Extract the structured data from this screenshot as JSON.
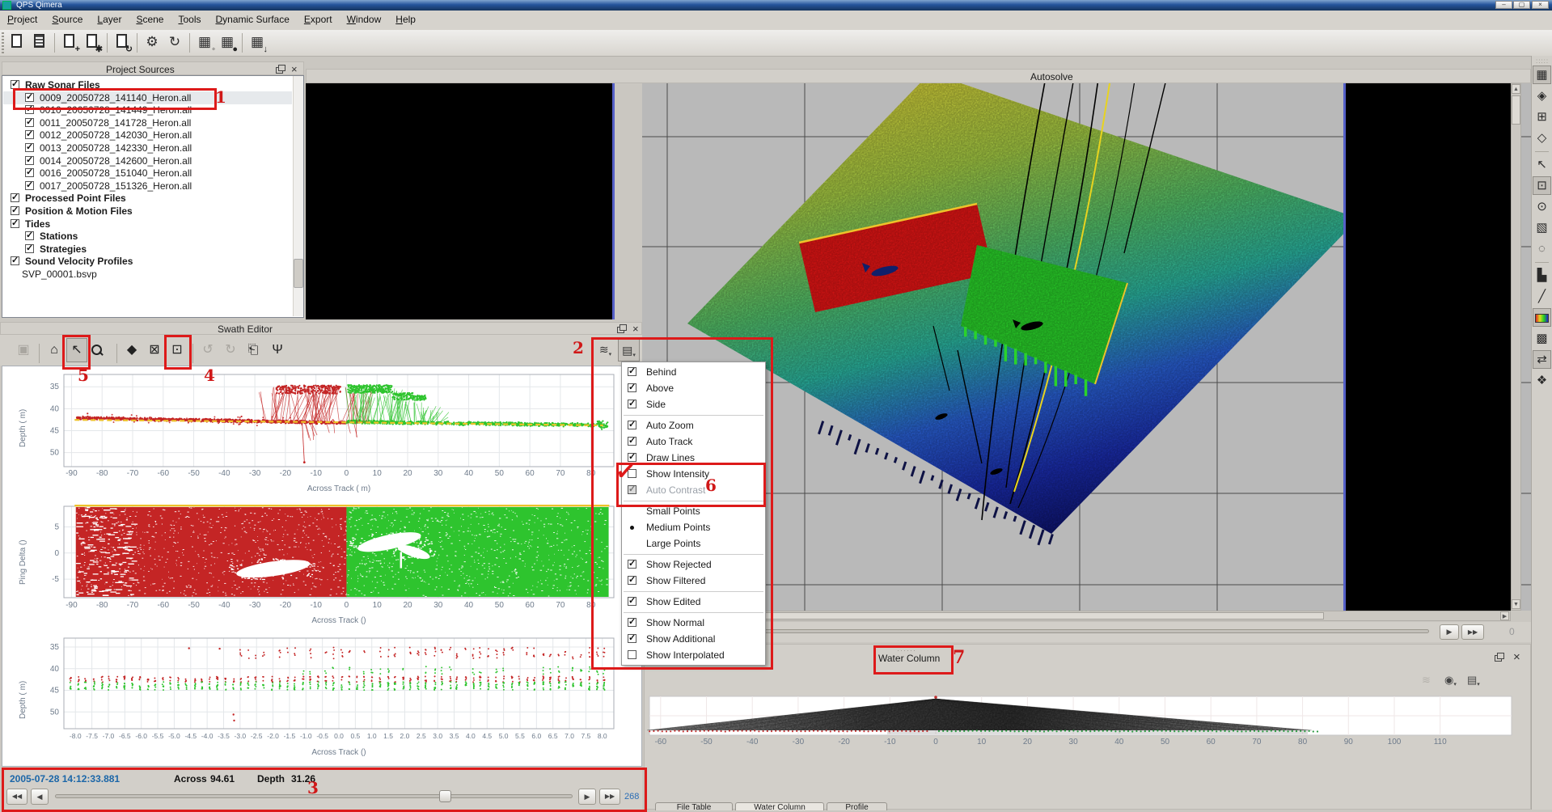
{
  "window": {
    "title": "QPS Qimera",
    "buttons": [
      {
        "name": "minimize-button",
        "glyph": "–"
      },
      {
        "name": "maximize-button",
        "glyph": "▢"
      },
      {
        "name": "close-button",
        "glyph": "×"
      }
    ]
  },
  "menu_bar": {
    "items": [
      "Project",
      "Source",
      "Layer",
      "Scene",
      "Tools",
      "Dynamic Surface",
      "Export",
      "Window",
      "Help"
    ]
  },
  "main_toolbar": {
    "icons": [
      {
        "name": "new-project-icon",
        "style": "doc"
      },
      {
        "name": "open-project-icon",
        "style": "doc-fill"
      },
      {
        "name": "add-raw-sonar-files-icon",
        "style": "doc",
        "badge": "+"
      },
      {
        "name": "add-processed-files-icon",
        "style": "doc",
        "badge": "✱"
      },
      {
        "name": "add-position-files-icon",
        "style": "doc",
        "badge": "↻"
      },
      {
        "name": "processing-settings-icon",
        "style": "glyph",
        "glyph": "⚙"
      },
      {
        "name": "reprocess-icon",
        "style": "glyph",
        "glyph": "↻"
      },
      {
        "name": "dynamic-surface-icon",
        "style": "glyph",
        "glyph": "▦",
        "badge": "◦"
      },
      {
        "name": "lock-surface-icon",
        "style": "glyph",
        "glyph": "▦",
        "badge": "●"
      },
      {
        "name": "export-surface-icon",
        "style": "glyph",
        "glyph": "▦",
        "badge": "↓"
      }
    ]
  },
  "project_sources": {
    "title": "Project Sources",
    "tree": [
      {
        "label": "Raw Sonar Files",
        "depth": 0,
        "checked": true,
        "bold": true
      },
      {
        "label": "0009_20050728_141140_Heron.all",
        "depth": 1,
        "checked": true,
        "selected": true
      },
      {
        "label": "0010_20050728_141449_Heron.all",
        "depth": 1,
        "checked": true
      },
      {
        "label": "0011_20050728_141728_Heron.all",
        "depth": 1,
        "checked": true
      },
      {
        "label": "0012_20050728_142030_Heron.all",
        "depth": 1,
        "checked": true
      },
      {
        "label": "0013_20050728_142330_Heron.all",
        "depth": 1,
        "checked": true
      },
      {
        "label": "0014_20050728_142600_Heron.all",
        "depth": 1,
        "checked": true
      },
      {
        "label": "0016_20050728_151040_Heron.all",
        "depth": 1,
        "checked": true
      },
      {
        "label": "0017_20050728_151326_Heron.all",
        "depth": 1,
        "checked": true
      },
      {
        "label": "Processed Point Files",
        "depth": 0,
        "checked": true,
        "bold": true
      },
      {
        "label": "Position & Motion Files",
        "depth": 0,
        "checked": true,
        "bold": true
      },
      {
        "label": "Tides",
        "depth": 0,
        "checked": true,
        "bold": true
      },
      {
        "label": "Stations",
        "depth": 1,
        "checked": true,
        "bold": true
      },
      {
        "label": "Strategies",
        "depth": 1,
        "checked": true,
        "bold": true
      },
      {
        "label": "Sound Velocity Profiles",
        "depth": 0,
        "checked": true,
        "bold": true
      },
      {
        "label": "SVP_00001.bsvp",
        "depth": 1,
        "checked": null
      }
    ]
  },
  "swath_editor": {
    "title": "Swath Editor",
    "toolbar": [
      {
        "name": "save-icon",
        "glyph": "▣",
        "disabled": true
      },
      {
        "name": "separator"
      },
      {
        "name": "home-view-icon",
        "glyph": "⌂"
      },
      {
        "name": "pick-cursor-icon",
        "glyph": "↖",
        "pressed": true
      },
      {
        "name": "zoom-icon",
        "glyph": "zoomico",
        "boxed": true
      },
      {
        "name": "separator"
      },
      {
        "name": "erase-icon",
        "glyph": "◆"
      },
      {
        "name": "reject-selection-icon",
        "glyph": "⊠"
      },
      {
        "name": "accept-selection-icon",
        "glyph": "⊡"
      },
      {
        "name": "separator"
      },
      {
        "name": "undo-icon",
        "glyph": "↺",
        "disabled": true
      },
      {
        "name": "redo-icon",
        "glyph": "↻",
        "disabled": true
      },
      {
        "name": "insert-view-icon",
        "glyph": "⎗",
        "boxed": true
      },
      {
        "name": "beam-filter-icon",
        "glyph": "Ψ"
      }
    ],
    "view_buttons": [
      {
        "name": "swath-display-icon",
        "glyph": "≋"
      },
      {
        "name": "display-options-menu-button",
        "glyph": "▤",
        "pressed": true
      }
    ],
    "status": {
      "timestamp": "2005-07-28 14:12:33.881",
      "across_label": "Across",
      "across_value": "94.61",
      "depth_label": "Depth",
      "depth_value": "31.26",
      "ping_count": "268"
    }
  },
  "view_menu": {
    "items": [
      {
        "label": "Behind",
        "type": "check",
        "checked": true
      },
      {
        "label": "Above",
        "type": "check",
        "checked": true
      },
      {
        "label": "Side",
        "type": "check",
        "checked": true
      },
      {
        "type": "separator"
      },
      {
        "label": "Auto Zoom",
        "type": "check",
        "checked": true
      },
      {
        "label": "Auto Track",
        "type": "check",
        "checked": true
      },
      {
        "label": "Draw Lines",
        "type": "check",
        "checked": true
      },
      {
        "label": "Show Intensity",
        "type": "check",
        "checked": false
      },
      {
        "label": "Auto Contrast",
        "type": "check",
        "checked": true,
        "disabled": true
      },
      {
        "type": "separator"
      },
      {
        "label": "Small Points",
        "type": "radio",
        "checked": false
      },
      {
        "label": "Medium Points",
        "type": "radio",
        "checked": true
      },
      {
        "label": "Large Points",
        "type": "radio",
        "checked": false
      },
      {
        "type": "separator"
      },
      {
        "label": "Show Rejected",
        "type": "check",
        "checked": true
      },
      {
        "label": "Show Filtered",
        "type": "check",
        "checked": true
      },
      {
        "type": "separator"
      },
      {
        "label": "Show Edited",
        "type": "check",
        "checked": true
      },
      {
        "type": "separator"
      },
      {
        "label": "Show Normal",
        "type": "check",
        "checked": true
      },
      {
        "label": "Show Additional",
        "type": "check",
        "checked": true
      },
      {
        "label": "Show Interpolated",
        "type": "check",
        "checked": false
      }
    ]
  },
  "autosolve": {
    "title": "Autosolve",
    "nav_counter": "0"
  },
  "water_column": {
    "title": "Water Column",
    "toolbar": [
      {
        "name": "fan-mode-icon",
        "glyph": "≋",
        "disabled": true
      },
      {
        "name": "visibility-icon",
        "glyph": "◉",
        "dropdown": true
      },
      {
        "name": "options-menu-icon",
        "glyph": "▤",
        "dropdown": true
      }
    ]
  },
  "bottom_tabs": [
    {
      "label": "File Table",
      "active": false
    },
    {
      "label": "Water Column",
      "active": true
    },
    {
      "label": "Profile",
      "active": false
    }
  ],
  "right_toolbar": {
    "icons": [
      {
        "name": "view-2d-icon",
        "glyph": "▦",
        "pressed": true
      },
      {
        "name": "view-plan-icon",
        "glyph": "◈"
      },
      {
        "name": "zoom-extents-icon",
        "glyph": "⊞"
      },
      {
        "name": "view-3d-cube-icon",
        "glyph": "◇"
      },
      {
        "name": "separator"
      },
      {
        "name": "select-cursor-icon",
        "glyph": "↖"
      },
      {
        "name": "box-select-icon",
        "glyph": "⊡",
        "pressed": true
      },
      {
        "name": "point-select-icon",
        "glyph": "⊙"
      },
      {
        "name": "rect-lasso-icon",
        "glyph": "▧"
      },
      {
        "name": "lasso-icon",
        "glyph": "◌"
      },
      {
        "name": "separator"
      },
      {
        "name": "histogram-icon",
        "glyph": "▙"
      },
      {
        "name": "ruler-icon",
        "glyph": "╱"
      },
      {
        "name": "colormap-icon",
        "glyph": "cbar",
        "pressed": true
      },
      {
        "name": "surface-grid-icon",
        "glyph": "▩"
      },
      {
        "name": "swap-view-icon",
        "glyph": "⇄",
        "pressed": true
      },
      {
        "name": "vertex-edit-icon",
        "glyph": "❖"
      }
    ]
  },
  "annotations": {
    "labels": [
      "1",
      "2",
      "3",
      "4",
      "5",
      "6",
      "7"
    ]
  },
  "nav_controls": {
    "prev_fast": "◀◀",
    "prev": "◀",
    "next": "▶",
    "next_fast": "▶▶"
  },
  "colors": {
    "port_red": "#c42525",
    "starboard_green": "#2ec42e",
    "track_yellow": "#eec32a",
    "annotation_red": "#dd1a1a",
    "timestamp_blue": "#1b66a8",
    "count_blue": "#2a6db5",
    "selection_blue_edge": "#5560c8",
    "axis_text": "#6e7b8b",
    "fan_dark": "#3c3c3c",
    "terrain": [
      "#d9d43b",
      "#a8cf45",
      "#55c46b",
      "#2bb9a4",
      "#2a62d8",
      "#1b2db0",
      "#0e1470"
    ]
  },
  "chart_data": [
    {
      "type": "scatter",
      "name": "swath-depth-profile",
      "xlabel": "Across Track ( m)",
      "ylabel": "Depth ( m)",
      "xticks": [
        -90,
        -80,
        -70,
        -60,
        -50,
        -40,
        -30,
        -20,
        -10,
        0,
        10,
        20,
        30,
        40,
        50,
        60,
        70,
        80
      ],
      "yticks": [
        35,
        40,
        45,
        50
      ],
      "xlim": [
        -92.5,
        87.5
      ],
      "ylim": [
        32.2,
        53.2
      ],
      "series": [
        {
          "name": "port-soundings",
          "color": "#c42525",
          "x_range": [
            -88.3,
            0
          ],
          "depth_range": [
            42.0,
            43.4
          ]
        },
        {
          "name": "starboard-soundings",
          "color": "#2ec42e",
          "x_range": [
            0,
            85.5
          ],
          "depth_range": [
            43.0,
            44.1
          ]
        },
        {
          "name": "port-noise-spikes",
          "color": "#c42525",
          "x_range": [
            -27,
            8
          ],
          "depth_range": [
            34.7,
            52.3
          ]
        },
        {
          "name": "starboard-noise-spikes",
          "color": "#2ec42e",
          "x_range": [
            0,
            32
          ],
          "depth_range": [
            34.6,
            43.0
          ]
        },
        {
          "name": "track-line",
          "color": "#eec32a",
          "style": "dashed",
          "depth_range": [
            42.55,
            43.8
          ]
        }
      ]
    },
    {
      "type": "scatter-dense",
      "name": "ping-delta",
      "xlabel": "Across Track ()",
      "ylabel": "Ping Delta ()",
      "xticks": [
        -90,
        -80,
        -70,
        -60,
        -50,
        -40,
        -30,
        -20,
        -10,
        0,
        10,
        20,
        30,
        40,
        50,
        60,
        70,
        80
      ],
      "yticks": [
        5,
        0,
        -5
      ],
      "xlim": [
        -92.5,
        87.5
      ],
      "ylim": [
        -8.9,
        9.0
      ],
      "series": [
        {
          "name": "port-block",
          "color": "#c42525",
          "x_range": [
            -88.6,
            0
          ]
        },
        {
          "name": "starboard-block",
          "color": "#2ec42e",
          "x_range": [
            0,
            85.8
          ]
        },
        {
          "name": "top-reference-line",
          "color": "#eec32a",
          "delta": 8.9
        }
      ]
    },
    {
      "type": "scatter",
      "name": "beam-depth",
      "xlabel": "Across Track ()",
      "ylabel": "Depth ( m)",
      "xticks": [
        "-8.0",
        "-7.5",
        "-7.0",
        "-6.5",
        "-6.0",
        "-5.5",
        "-5.0",
        "-4.5",
        "-4.0",
        "-3.5",
        "-3.0",
        "-2.5",
        "-2.0",
        "-1.5",
        "-1.0",
        "-0.5",
        "0.0",
        "0.5",
        "1.0",
        "1.5",
        "2.0",
        "2.5",
        "3.0",
        "3.5",
        "4.0",
        "4.5",
        "5.0",
        "5.5",
        "6.0",
        "6.5",
        "7.0",
        "7.5",
        "8.0"
      ],
      "yticks": [
        35,
        40,
        45,
        50
      ],
      "xlim": [
        -8.35,
        8.35
      ],
      "ylim": [
        32.9,
        53.9
      ],
      "series": [
        {
          "name": "rejected-red-points",
          "color": "#c42525",
          "depth_range": [
            35.1,
            43.1
          ]
        },
        {
          "name": "accepted-green-points",
          "color": "#2ec42e",
          "depth_range": [
            43.0,
            45.0
          ]
        }
      ]
    },
    {
      "type": "fan",
      "name": "water-column-fan",
      "xticks": [
        -60,
        -50,
        -40,
        -30,
        -20,
        -10,
        0,
        10,
        20,
        30,
        40,
        50,
        60,
        70,
        80,
        90,
        100,
        110
      ],
      "xlim": [
        -66,
        134
      ],
      "apex_x": 0,
      "base_extent": [
        -63,
        82
      ],
      "series": [
        {
          "name": "port-bottom-track",
          "color": "#c03030"
        },
        {
          "name": "starboard-bottom-track",
          "color": "#2a9a40"
        }
      ]
    }
  ]
}
